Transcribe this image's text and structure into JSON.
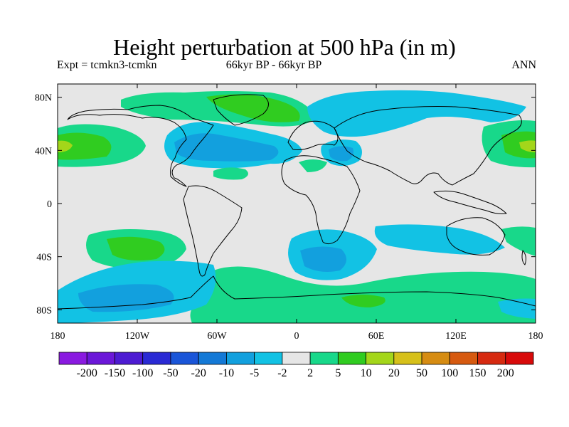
{
  "title": "Height perturbation at 500 hPa (in m)",
  "subtitle_left": "Expt = tcmkn3-tcmkn",
  "subtitle_center": "66kyr BP - 66kyr BP",
  "subtitle_right": "ANN",
  "map": {
    "lon_range": [
      -180,
      180
    ],
    "lat_range": [
      -90,
      90
    ],
    "lat_ticks": [
      {
        "value": 80,
        "label": "80N"
      },
      {
        "value": 40,
        "label": "40N"
      },
      {
        "value": 0,
        "label": "0"
      },
      {
        "value": -40,
        "label": "40S"
      },
      {
        "value": -80,
        "label": "80S"
      }
    ],
    "lon_ticks": [
      {
        "value": -180,
        "label": "180"
      },
      {
        "value": -120,
        "label": "120W"
      },
      {
        "value": -60,
        "label": "60W"
      },
      {
        "value": 0,
        "label": "0"
      },
      {
        "value": 60,
        "label": "60E"
      },
      {
        "value": 120,
        "label": "120E"
      },
      {
        "value": 180,
        "label": "180"
      }
    ],
    "background_color": "#e6e6e6"
  },
  "colorbar": {
    "labels": [
      "-200",
      "-150",
      "-100",
      "-50",
      "-20",
      "-10",
      "-5",
      "-2",
      "2",
      "5",
      "10",
      "20",
      "50",
      "100",
      "150",
      "200"
    ],
    "colors": [
      "#8a1ae0",
      "#6b17d8",
      "#4d1bd2",
      "#2a2ad4",
      "#1a55d8",
      "#1479d6",
      "#12a0de",
      "#12c2e4",
      "#e6e6e6",
      "#18d88a",
      "#30cc20",
      "#a4d61a",
      "#d6c01a",
      "#d68c12",
      "#d65a10",
      "#d62a10",
      "#d80a0a"
    ]
  }
}
